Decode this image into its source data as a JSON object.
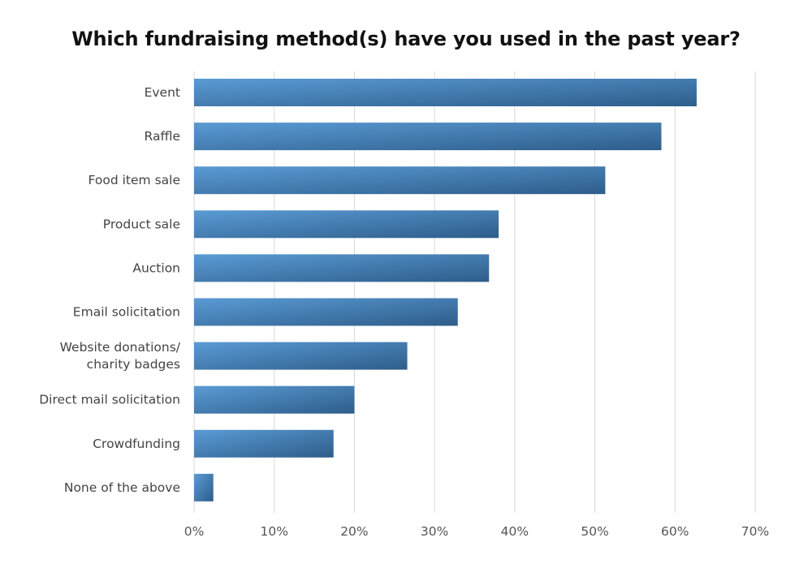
{
  "chart_data": {
    "type": "bar",
    "orientation": "horizontal",
    "title": "Which fundraising method(s) have you used in the past year?",
    "xlabel": "",
    "ylabel": "",
    "categories": [
      [
        "Event"
      ],
      [
        "Raffle"
      ],
      [
        "Food item sale"
      ],
      [
        "Product sale"
      ],
      [
        "Auction"
      ],
      [
        "Email solicitation"
      ],
      [
        "Website donations/",
        "charity badges"
      ],
      [
        "Direct mail solicitation"
      ],
      [
        "Crowdfunding"
      ],
      [
        "None of the above"
      ]
    ],
    "values": [
      62.7,
      58.3,
      51.3,
      38.0,
      36.8,
      32.9,
      26.6,
      20.0,
      17.4,
      2.4
    ],
    "unit": "%",
    "xlim": [
      0,
      70
    ],
    "xticks": [
      0,
      10,
      20,
      30,
      40,
      50,
      60,
      70
    ],
    "tick_labels": [
      "0%",
      "10%",
      "20%",
      "30%",
      "40%",
      "50%",
      "60%",
      "70%"
    ],
    "grid": true,
    "legend": "none",
    "colors": {
      "bar_light": "#5a9bd5",
      "bar_dark": "#2e5d8a",
      "grid": "#d9d9d9"
    }
  }
}
